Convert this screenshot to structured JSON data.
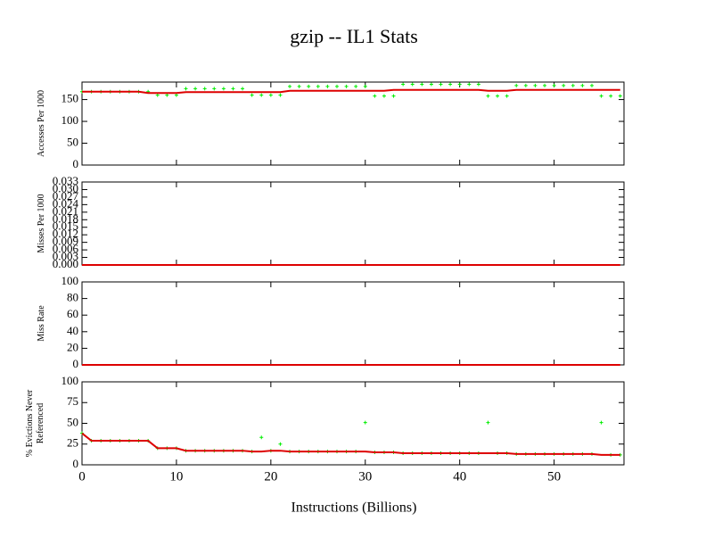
{
  "title": "gzip -- IL1  Stats",
  "xlabel": "Instructions (Billions)",
  "chart_data": [
    {
      "type": "line",
      "ylabel": [
        "Accesses Per 1000"
      ],
      "xlim": [
        0,
        57.4
      ],
      "ylim": [
        0,
        190
      ],
      "yticks": [
        0,
        50,
        100,
        150
      ],
      "x": [
        0,
        1,
        2,
        3,
        4,
        5,
        6,
        7,
        8,
        9,
        10,
        11,
        12,
        13,
        14,
        15,
        16,
        17,
        18,
        19,
        20,
        21,
        22,
        23,
        24,
        25,
        26,
        27,
        28,
        29,
        30,
        31,
        32,
        33,
        34,
        35,
        36,
        37,
        38,
        39,
        40,
        41,
        42,
        43,
        44,
        45,
        46,
        47,
        48,
        49,
        50,
        51,
        52,
        53,
        54,
        55,
        56,
        57
      ],
      "series": [
        {
          "color": "#00ee00",
          "mode": "markers",
          "values": [
            168,
            168,
            168,
            168,
            168,
            168,
            168,
            168,
            160,
            160,
            160,
            175,
            175,
            175,
            175,
            175,
            175,
            175,
            160,
            160,
            160,
            160,
            180,
            180,
            180,
            180,
            180,
            180,
            180,
            180,
            180,
            158,
            158,
            158,
            185,
            185,
            185,
            185,
            185,
            185,
            185,
            185,
            185,
            158,
            158,
            158,
            182,
            182,
            182,
            182,
            182,
            182,
            182,
            182,
            182,
            158,
            158,
            158
          ]
        },
        {
          "color": "#dd0000",
          "mode": "line",
          "values": [
            168,
            168,
            168,
            168,
            168,
            168,
            168,
            165,
            165,
            165,
            165,
            167,
            167,
            167,
            167,
            167,
            167,
            167,
            167,
            167,
            167,
            167,
            170,
            170,
            170,
            170,
            170,
            170,
            170,
            170,
            170,
            170,
            170,
            172,
            172,
            172,
            172,
            172,
            172,
            172,
            172,
            172,
            172,
            170,
            170,
            170,
            172,
            172,
            172,
            172,
            172,
            172,
            172,
            172,
            172,
            172,
            172,
            172
          ]
        }
      ]
    },
    {
      "type": "line",
      "ylabel": [
        "Misses Per 1000"
      ],
      "xlim": [
        0,
        57.4
      ],
      "ylim": [
        0,
        0.033
      ],
      "yticks": [
        {
          "value": 0,
          "label": "0.000"
        },
        {
          "value": 0.003,
          "label": "0.003"
        },
        {
          "value": 0.006,
          "label": "0.006"
        },
        {
          "value": 0.009,
          "label": "0.009"
        },
        {
          "value": 0.012,
          "label": "0.012"
        },
        {
          "value": 0.015,
          "label": "0.015"
        },
        {
          "value": 0.018,
          "label": "0.018"
        },
        {
          "value": 0.021,
          "label": "0.021"
        },
        {
          "value": 0.024,
          "label": "0.024"
        },
        {
          "value": 0.027,
          "label": "0.027"
        },
        {
          "value": 0.03,
          "label": "0.030"
        },
        {
          "value": 0.033,
          "label": "0.033"
        }
      ],
      "x": [
        0,
        1,
        2,
        3,
        4,
        5,
        6,
        7,
        8,
        9,
        10,
        11,
        12,
        13,
        14,
        15,
        16,
        17,
        18,
        19,
        20,
        21,
        22,
        23,
        24,
        25,
        26,
        27,
        28,
        29,
        30,
        31,
        32,
        33,
        34,
        35,
        36,
        37,
        38,
        39,
        40,
        41,
        42,
        43,
        44,
        45,
        46,
        47,
        48,
        49,
        50,
        51,
        52,
        53,
        54,
        55,
        56,
        57
      ],
      "series": [
        {
          "color": "#dd0000",
          "mode": "line",
          "values": [
            0,
            0,
            0,
            0,
            0,
            0,
            0,
            0,
            0,
            0,
            0,
            0,
            0,
            0,
            0,
            0,
            0,
            0,
            0,
            0,
            0,
            0,
            0,
            0,
            0,
            0,
            0,
            0,
            0,
            0,
            0,
            0,
            0,
            0,
            0,
            0,
            0,
            0,
            0,
            0,
            0,
            0,
            0,
            0,
            0,
            0,
            0,
            0,
            0,
            0,
            0,
            0,
            0,
            0,
            0,
            0,
            0,
            0
          ]
        }
      ]
    },
    {
      "type": "line",
      "ylabel": [
        "Miss Rate"
      ],
      "xlim": [
        0,
        57.4
      ],
      "ylim": [
        0,
        100
      ],
      "yticks": [
        0,
        20,
        40,
        60,
        80,
        100
      ],
      "x": [
        0,
        1,
        2,
        3,
        4,
        5,
        6,
        7,
        8,
        9,
        10,
        11,
        12,
        13,
        14,
        15,
        16,
        17,
        18,
        19,
        20,
        21,
        22,
        23,
        24,
        25,
        26,
        27,
        28,
        29,
        30,
        31,
        32,
        33,
        34,
        35,
        36,
        37,
        38,
        39,
        40,
        41,
        42,
        43,
        44,
        45,
        46,
        47,
        48,
        49,
        50,
        51,
        52,
        53,
        54,
        55,
        56,
        57
      ],
      "series": [
        {
          "color": "#dd0000",
          "mode": "line",
          "values": [
            0,
            0,
            0,
            0,
            0,
            0,
            0,
            0,
            0,
            0,
            0,
            0,
            0,
            0,
            0,
            0,
            0,
            0,
            0,
            0,
            0,
            0,
            0,
            0,
            0,
            0,
            0,
            0,
            0,
            0,
            0,
            0,
            0,
            0,
            0,
            0,
            0,
            0,
            0,
            0,
            0,
            0,
            0,
            0,
            0,
            0,
            0,
            0,
            0,
            0,
            0,
            0,
            0,
            0,
            0,
            0,
            0,
            0
          ]
        }
      ]
    },
    {
      "type": "line",
      "ylabel": [
        "% Evictions Never",
        "Referenced"
      ],
      "xlim": [
        0,
        57.4
      ],
      "ylim": [
        0,
        100
      ],
      "yticks": [
        0,
        25,
        50,
        75,
        100
      ],
      "xticks": [
        0,
        10,
        20,
        30,
        40,
        50
      ],
      "x": [
        0,
        1,
        2,
        3,
        4,
        5,
        6,
        7,
        8,
        9,
        10,
        11,
        12,
        13,
        14,
        15,
        16,
        17,
        18,
        19,
        20,
        21,
        22,
        23,
        24,
        25,
        26,
        27,
        28,
        29,
        30,
        31,
        32,
        33,
        34,
        35,
        36,
        37,
        38,
        39,
        40,
        41,
        42,
        43,
        44,
        45,
        46,
        47,
        48,
        49,
        50,
        51,
        52,
        53,
        54,
        55,
        56,
        57
      ],
      "series": [
        {
          "color": "#00ee00",
          "mode": "markers",
          "values": [
            38,
            29,
            29,
            29,
            29,
            29,
            29,
            29,
            20,
            20,
            20,
            17,
            17,
            17,
            17,
            17,
            17,
            17,
            16,
            33,
            17,
            25,
            16,
            16,
            16,
            16,
            16,
            16,
            16,
            16,
            51,
            15,
            15,
            15,
            14,
            14,
            14,
            14,
            14,
            14,
            14,
            14,
            14,
            51,
            14,
            14,
            13,
            13,
            13,
            13,
            13,
            13,
            13,
            13,
            13,
            51,
            12,
            12
          ]
        },
        {
          "color": "#dd0000",
          "mode": "line",
          "values": [
            38,
            29,
            29,
            29,
            29,
            29,
            29,
            29,
            20,
            20,
            20,
            17,
            17,
            17,
            17,
            17,
            17,
            17,
            16,
            16,
            17,
            17,
            16,
            16,
            16,
            16,
            16,
            16,
            16,
            16,
            16,
            15,
            15,
            15,
            14,
            14,
            14,
            14,
            14,
            14,
            14,
            14,
            14,
            14,
            14,
            14,
            13,
            13,
            13,
            13,
            13,
            13,
            13,
            13,
            13,
            12,
            12,
            12
          ]
        }
      ]
    }
  ]
}
